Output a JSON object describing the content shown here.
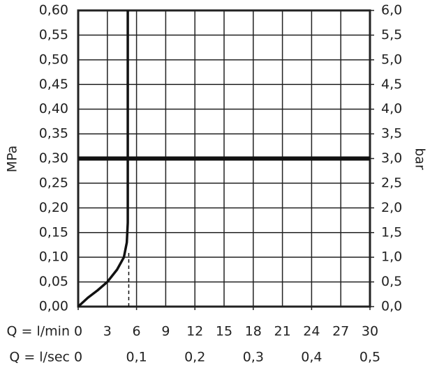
{
  "chart_data": {
    "type": "line",
    "x_label": "Q = l/min",
    "x2_label": "Q = l/sec",
    "y_label": "MPa",
    "y2_label": "bar",
    "xlim": [
      0,
      30
    ],
    "xticks": [
      0,
      3,
      6,
      9,
      12,
      15,
      18,
      21,
      24,
      27,
      30
    ],
    "x2lim": [
      0,
      0.5
    ],
    "x2ticks": [
      0,
      {
        "value": 0.1,
        "label": "0,1"
      },
      {
        "value": 0.2,
        "label": "0,2"
      },
      {
        "value": 0.3,
        "label": "0,3"
      },
      {
        "value": 0.4,
        "label": "0,4"
      },
      {
        "value": 0.5,
        "label": "0,5"
      }
    ],
    "ylim": [
      0,
      0.6
    ],
    "yticks": [
      {
        "value": 0,
        "label": "0,00"
      },
      {
        "value": 0.05,
        "label": "0,05"
      },
      {
        "value": 0.1,
        "label": "0,10"
      },
      {
        "value": 0.15,
        "label": "0,15"
      },
      {
        "value": 0.2,
        "label": "0,20"
      },
      {
        "value": 0.25,
        "label": "0,25"
      },
      {
        "value": 0.3,
        "label": "0,30"
      },
      {
        "value": 0.35,
        "label": "0,35"
      },
      {
        "value": 0.4,
        "label": "0,40"
      },
      {
        "value": 0.45,
        "label": "0,45"
      },
      {
        "value": 0.5,
        "label": "0,50"
      },
      {
        "value": 0.55,
        "label": "0,55"
      },
      {
        "value": 0.6,
        "label": "0,60"
      }
    ],
    "y2lim": [
      0,
      6
    ],
    "y2ticks": [
      {
        "value": 0,
        "label": "0,0"
      },
      {
        "value": 0.5,
        "label": "0,5"
      },
      {
        "value": 1,
        "label": "1,0"
      },
      {
        "value": 1.5,
        "label": "1,5"
      },
      {
        "value": 2,
        "label": "2,0"
      },
      {
        "value": 2.5,
        "label": "2,5"
      },
      {
        "value": 3,
        "label": "3,0"
      },
      {
        "value": 3.5,
        "label": "3,5"
      },
      {
        "value": 4,
        "label": "4,0"
      },
      {
        "value": 4.5,
        "label": "4,5"
      },
      {
        "value": 5,
        "label": "5,0"
      },
      {
        "value": 5.5,
        "label": "5,5"
      },
      {
        "value": 6,
        "label": "6,0"
      }
    ],
    "grid": true,
    "reference_line": 0.3,
    "drop_line": {
      "x": 5.2,
      "y": 0.11
    },
    "series": [
      {
        "color": "#111111",
        "x": [
          0,
          1,
          2,
          3,
          4,
          4.7,
          5.0,
          5.1,
          5.1
        ],
        "values": [
          0,
          0.018,
          0.033,
          0.05,
          0.075,
          0.1,
          0.13,
          0.17,
          0.6
        ]
      }
    ]
  }
}
